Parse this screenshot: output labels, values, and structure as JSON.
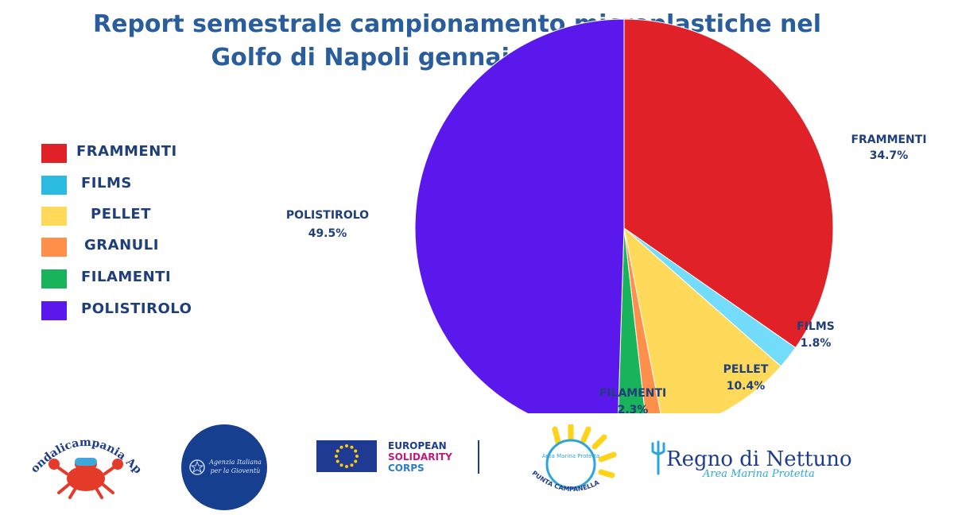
{
  "title_line1": "Report semestrale campionamento microplastiche nel",
  "title_line2": "Golfo di Napoli gennaio-giugno 2023",
  "legend": [
    {
      "label": "FRAMMENTI",
      "color": "#e12128"
    },
    {
      "label": "FILMS",
      "color": "#2cbbe0"
    },
    {
      "label": "PELLET",
      "color": "#ffd95a"
    },
    {
      "label": "GRANULI",
      "color": "#ff8f4a"
    },
    {
      "label": "FILAMENTI",
      "color": "#18b35a"
    },
    {
      "label": "POLISTIROLO",
      "color": "#5b18ec"
    }
  ],
  "chart_data": {
    "type": "pie",
    "slices": [
      {
        "name": "FRAMMENTI",
        "percent": 34.7,
        "label": "34.7%",
        "color": "#e12128"
      },
      {
        "name": "FILMS",
        "percent": 1.8,
        "label": "1.8%",
        "color": "#74dcfb"
      },
      {
        "name": "PELLET",
        "percent": 10.4,
        "label": "10.4%",
        "color": "#ffd95a"
      },
      {
        "name": "GRANULI",
        "percent": 1.3,
        "label": "",
        "color": "#ff8f4a"
      },
      {
        "name": "FILAMENTI",
        "percent": 2.3,
        "label": "2.3%",
        "color": "#18b35a"
      },
      {
        "name": "POLISTIROLO",
        "percent": 49.5,
        "label": "49.5%",
        "color": "#5b18ec"
      }
    ]
  },
  "logos": {
    "fondali_text": "Fondalicampania Aps",
    "agenzia_text_line1": "Agenzia Italiana",
    "agenzia_text_line2": "per la Gioventù",
    "esc_line1": "EUROPEAN",
    "esc_line2": "SOLIDARITY",
    "esc_line3": "CORPS",
    "amp_text": "Area Marina Protetta",
    "punta_text": "PUNTA CAMPANELLA",
    "regno_title": "Regno di Nettuno",
    "regno_sub": "Area Marina Protetta",
    "colors": {
      "navy": "#1e3c8c",
      "esc_pink": "#c2187a",
      "esc_blue": "#2c7cc9",
      "sun": "#ffd31a",
      "sea": "#2aa6dc"
    }
  }
}
